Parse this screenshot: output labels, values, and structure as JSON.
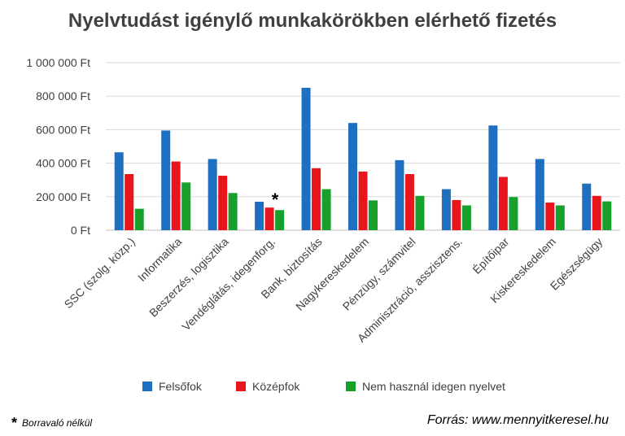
{
  "chart_data": {
    "type": "bar",
    "title": "Nyelvtudást igénylő munkakörökben elérhető fizetés",
    "categories": [
      "SSC (szolg. közp.)",
      "Informatika",
      "Beszerzés, logisztika",
      "Vendéglátás, idegenforg.",
      "Bank, biztosítás",
      "Nagykereskedelem",
      "Pénzügy, számvitel",
      "Adminisztráció, asszisztens.",
      "Építőipar",
      "Kiskereskedelem",
      "Egészségügy"
    ],
    "series": [
      {
        "name": "Felsőfok",
        "color": "#1e6fc0",
        "values": [
          465000,
          595000,
          425000,
          170000,
          850000,
          640000,
          418000,
          245000,
          625000,
          425000,
          278000
        ]
      },
      {
        "name": "Középfok",
        "color": "#e8161c",
        "values": [
          335000,
          410000,
          325000,
          135000,
          370000,
          350000,
          335000,
          180000,
          318000,
          165000,
          205000
        ]
      },
      {
        "name": "Nem használ idegen nyelvet",
        "color": "#17a02c",
        "values": [
          128000,
          285000,
          222000,
          120000,
          245000,
          178000,
          205000,
          148000,
          198000,
          148000,
          172000
        ]
      }
    ],
    "ylim": [
      0,
      1000000
    ],
    "yticks": [
      0,
      200000,
      400000,
      600000,
      800000,
      1000000
    ],
    "ytick_labels": [
      "0 Ft",
      "200 000 Ft",
      "400 000 Ft",
      "600 000 Ft",
      "800 000 Ft",
      "1 000 000 Ft"
    ],
    "grid": true,
    "legend_position": "bottom",
    "annotation": {
      "text": "*",
      "category_index": 3
    }
  },
  "footnote": {
    "mark": "*",
    "text": "Borravaló nélkül"
  },
  "source": "Forrás: www.mennyitkeresel.hu"
}
